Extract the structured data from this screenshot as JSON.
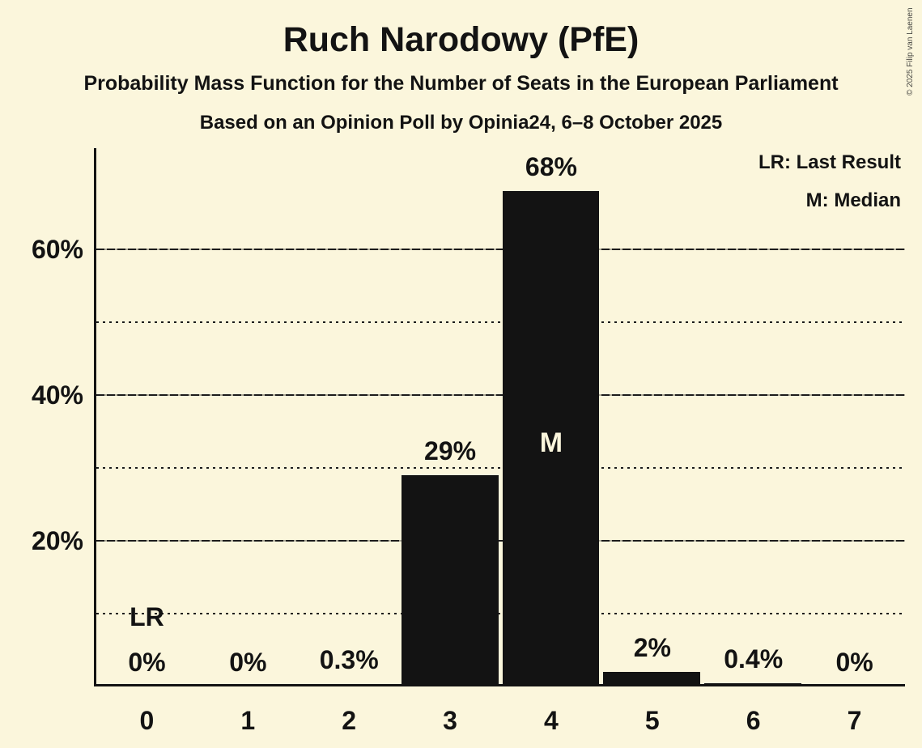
{
  "header": {
    "title": "Ruch Narodowy (PfE)",
    "subtitle": "Probability Mass Function for the Number of Seats in the European Parliament",
    "poll_line": "Based on an Opinion Poll by Opinia24, 6–8 October 2025"
  },
  "legend": {
    "lr": "LR: Last Result",
    "m": "M: Median"
  },
  "copyright": "© 2025 Filip van Laenen",
  "colors": {
    "background": "#FBF6DC",
    "bar": "#131313",
    "text": "#131313"
  },
  "chart_data": {
    "type": "bar",
    "title": "Ruch Narodowy (PfE)",
    "xlabel": "",
    "ylabel": "",
    "categories": [
      "0",
      "1",
      "2",
      "3",
      "4",
      "5",
      "6",
      "7"
    ],
    "values": [
      0,
      0,
      0.3,
      29,
      68,
      2,
      0.4,
      0
    ],
    "value_labels": [
      "0%",
      "0%",
      "0.3%",
      "29%",
      "68%",
      "2%",
      "0.4%",
      "0%"
    ],
    "y_ticks": [
      {
        "value": 20,
        "label": "20%"
      },
      {
        "value": 40,
        "label": "40%"
      },
      {
        "value": 60,
        "label": "60%"
      }
    ],
    "major_gridlines": [
      20,
      40,
      60
    ],
    "minor_gridlines": [
      10,
      30,
      50
    ],
    "ylim": [
      0,
      73.9
    ],
    "grid": true,
    "legend_position": "top-right",
    "annotations": {
      "lr_label": "LR",
      "lr_seat": 0,
      "m_label": "M",
      "median_seat": 4
    }
  }
}
